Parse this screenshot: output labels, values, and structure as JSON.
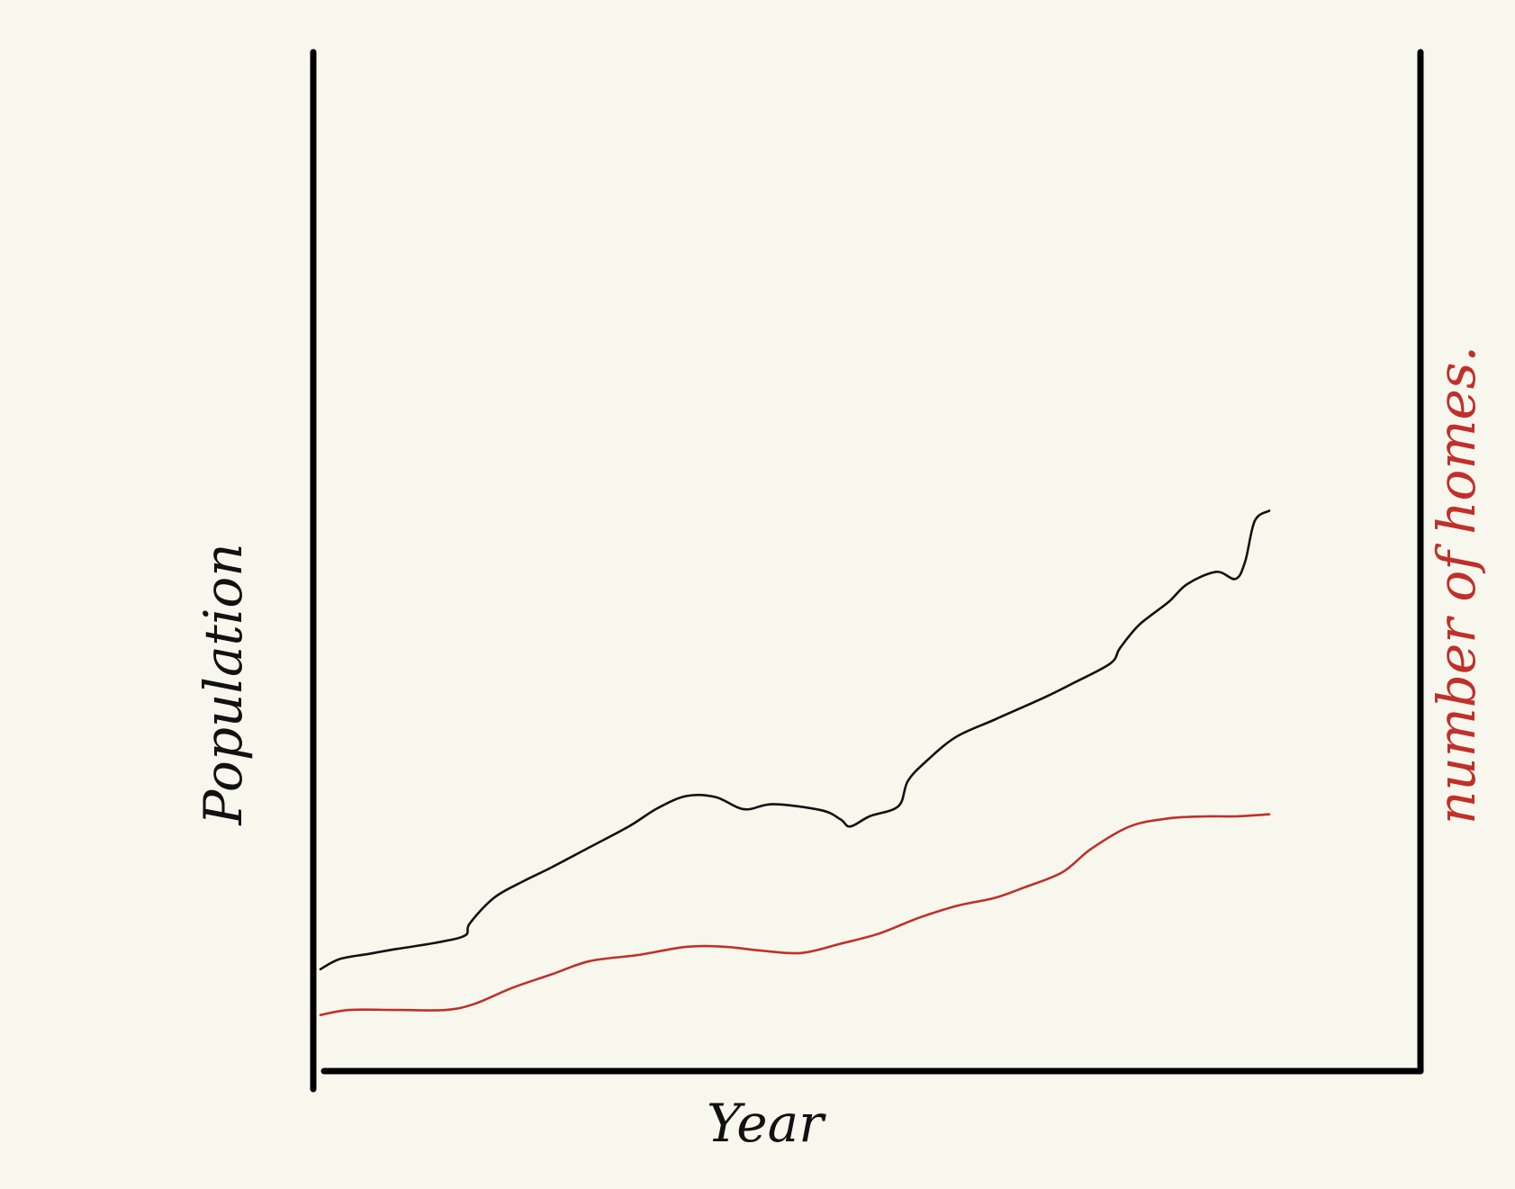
{
  "chart_data": {
    "type": "line",
    "title": "",
    "xlabel": "Year",
    "ylabel": "Population",
    "y2label": "number of homes.",
    "xlim": [
      0,
      100
    ],
    "ylim": [
      0,
      100
    ],
    "y2lim": [
      0,
      100
    ],
    "grid": false,
    "legend": "none",
    "series": [
      {
        "axis": "left",
        "color": "#111111",
        "x": [
          0,
          2,
          5,
          8,
          12,
          15,
          15.5,
          18,
          21,
          24,
          28,
          32,
          35,
          38,
          41,
          44,
          47,
          52,
          54,
          55,
          57,
          60,
          61,
          63,
          66,
          70,
          75,
          78,
          82,
          83,
          85,
          88,
          90,
          93,
          95,
          96,
          97,
          98.5
        ],
        "y": [
          10,
          11,
          11.5,
          12,
          12.6,
          13.3,
          14.5,
          17,
          18.6,
          20,
          22,
          24,
          25.8,
          27,
          26.9,
          25.7,
          26.2,
          25.6,
          24.7,
          24,
          25,
          26,
          28.5,
          30.5,
          32.8,
          34.5,
          36.6,
          38,
          40,
          41.5,
          43.8,
          46,
          47.8,
          49,
          48.3,
          50,
          54,
          55
        ]
      },
      {
        "axis": "right",
        "color": "#c0302a",
        "x": [
          0,
          3,
          8,
          13,
          16,
          20,
          24,
          28,
          33,
          38,
          42,
          46,
          50,
          54,
          58,
          62,
          66,
          70,
          73,
          77,
          80,
          84,
          88,
          92,
          95,
          98.5
        ],
        "y": [
          5.5,
          6,
          6,
          6,
          6.6,
          8.2,
          9.5,
          10.8,
          11.4,
          12.2,
          12.2,
          11.8,
          11.6,
          12.5,
          13.5,
          15,
          16.2,
          17,
          18,
          19.5,
          21.8,
          24,
          24.8,
          25,
          25,
          25.2
        ]
      }
    ]
  }
}
